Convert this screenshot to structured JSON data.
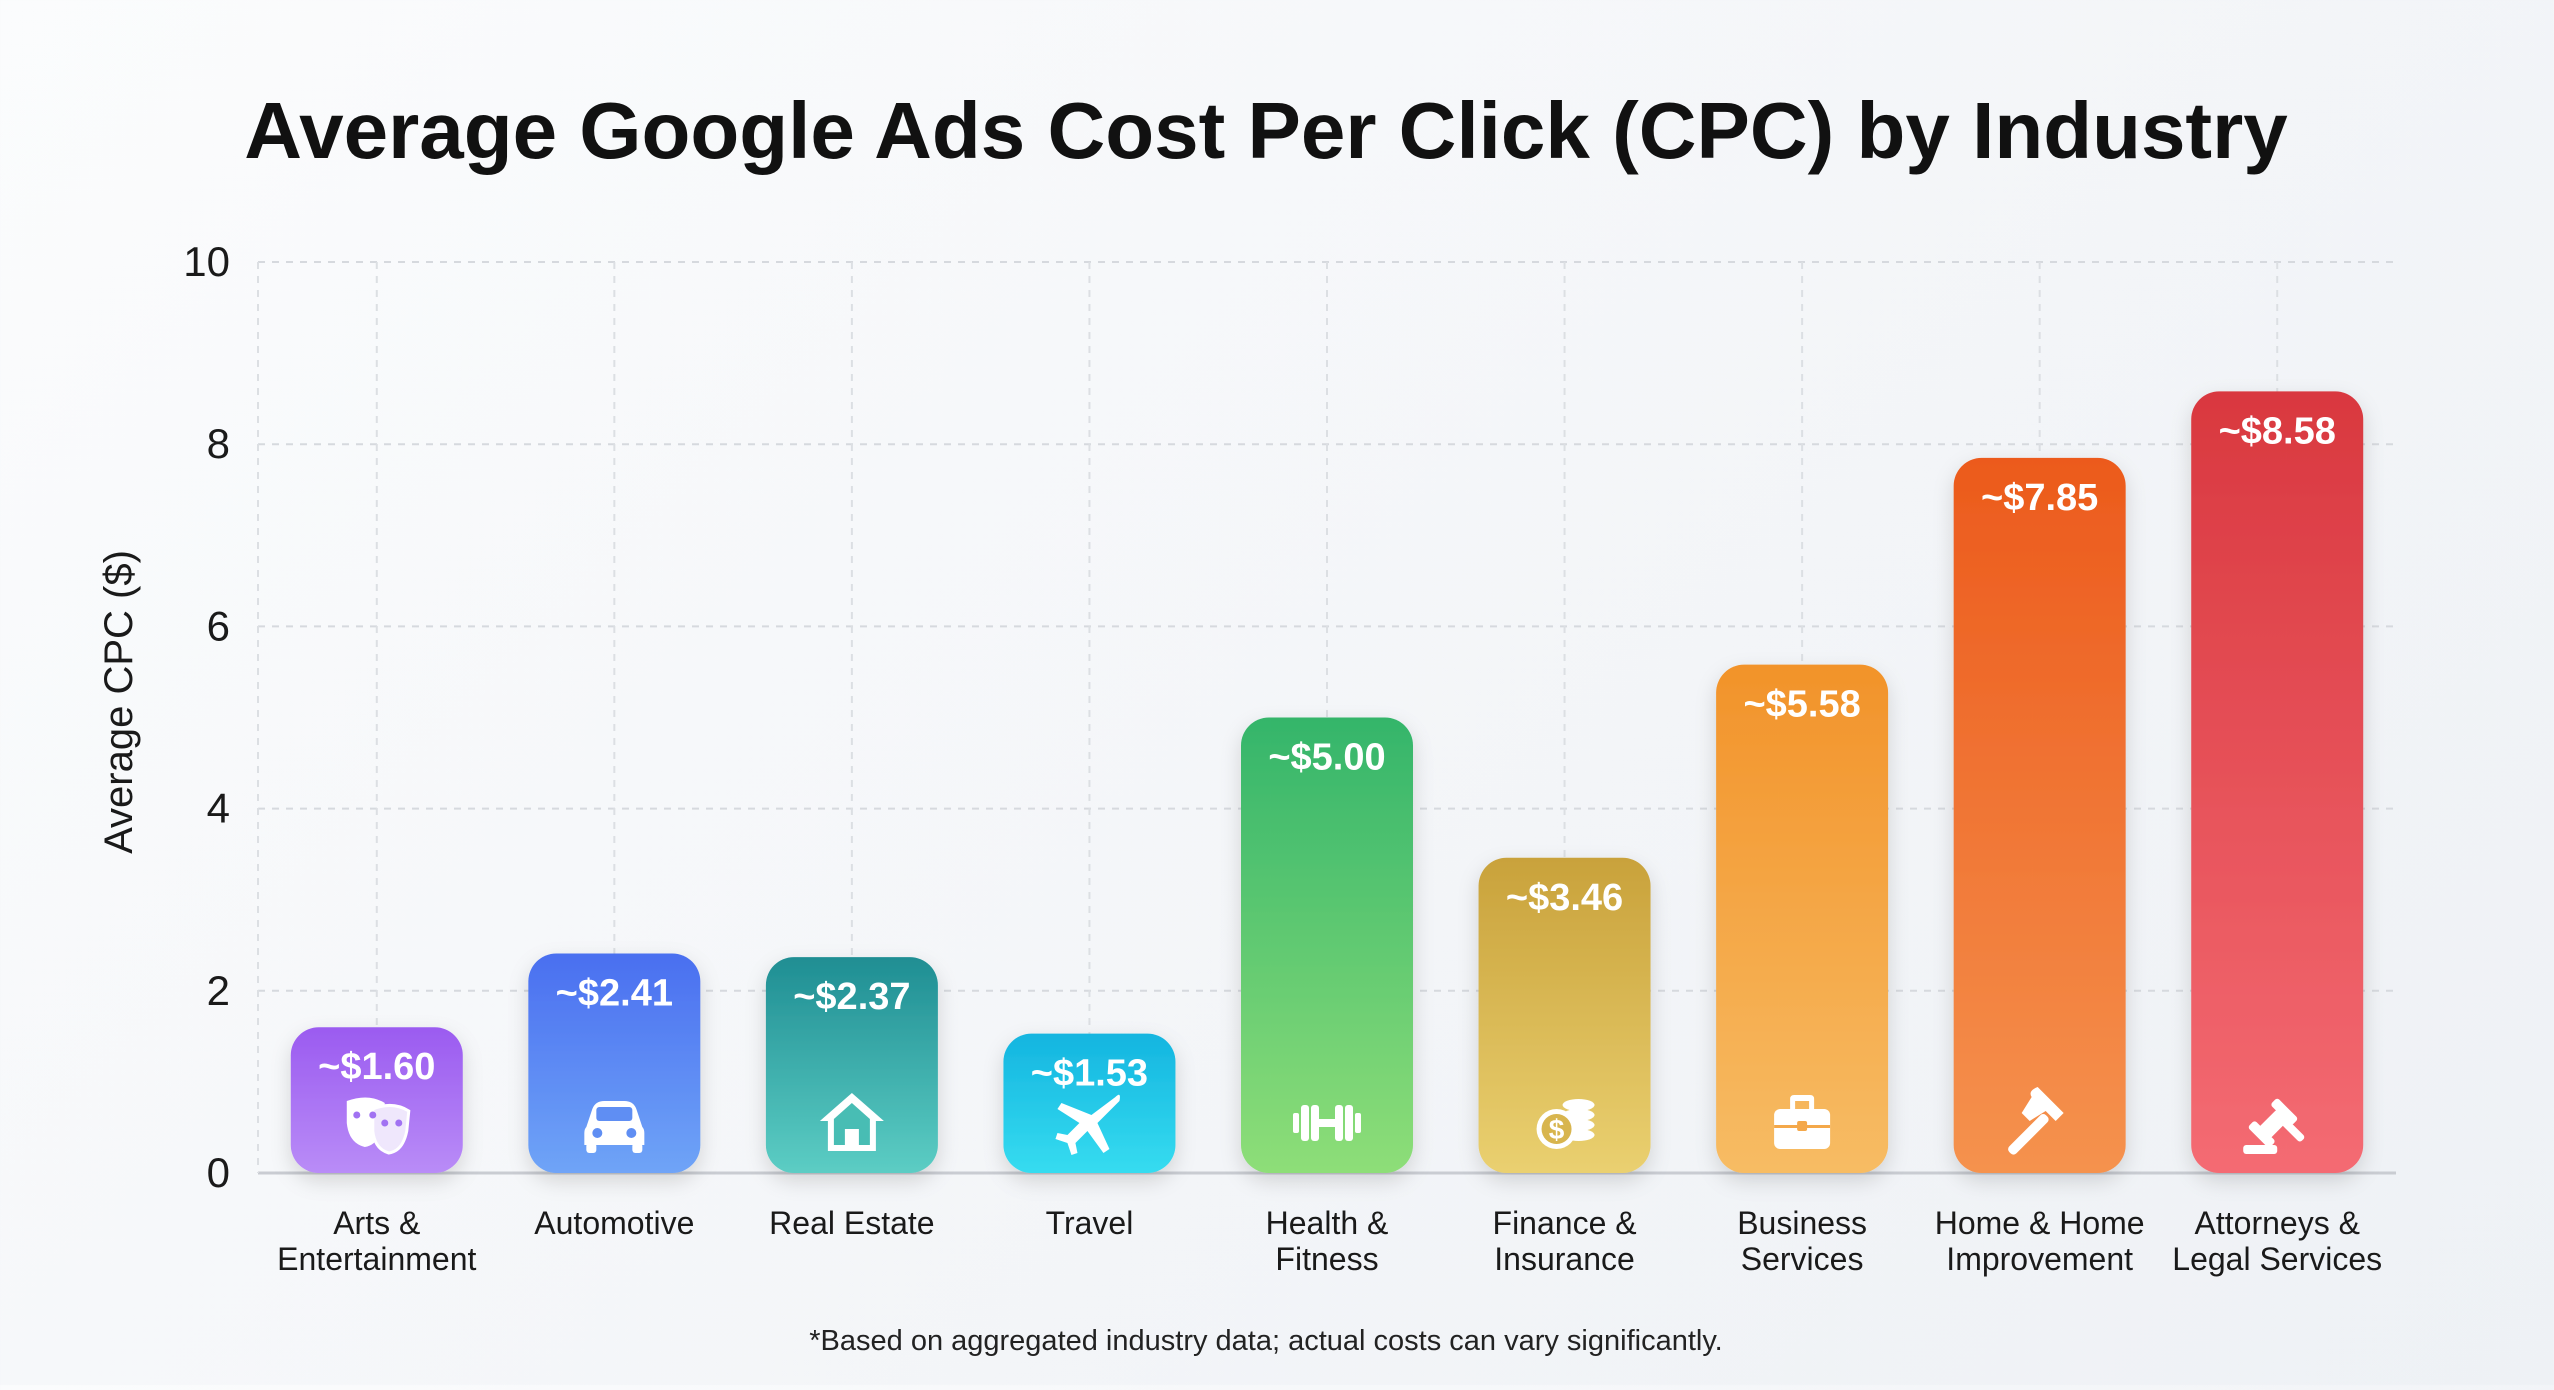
{
  "chart_data": {
    "type": "bar",
    "title": "Average Google Ads Cost Per Click (CPC) by Industry",
    "ylabel": "Average CPC ($)",
    "xlabel": "",
    "ylim": [
      0,
      10
    ],
    "yticks": [
      "0",
      "2",
      "4",
      "6",
      "8",
      "10"
    ],
    "grid": true,
    "categories": [
      [
        "Arts &",
        "Entertainment"
      ],
      [
        "Automotive"
      ],
      [
        "Real Estate"
      ],
      [
        "Travel"
      ],
      [
        "Health &",
        "Fitness"
      ],
      [
        "Finance &",
        "Insurance"
      ],
      [
        "Business",
        "Services"
      ],
      [
        "Home & Home",
        "Improvement"
      ],
      [
        "Attorneys &",
        "Legal Services"
      ]
    ],
    "values": [
      1.6,
      2.41,
      2.37,
      1.53,
      5.0,
      3.46,
      5.58,
      7.85,
      8.58
    ],
    "data_labels": [
      "~$1.60",
      "~$2.41",
      "~$2.37",
      "~$1.53",
      "~$5.00",
      "~$3.46",
      "~$5.58",
      "~$7.85",
      "~$8.58"
    ],
    "icons": [
      "theater-masks-icon",
      "car-icon",
      "house-icon",
      "airplane-icon",
      "dumbbell-icon",
      "coins-icon",
      "briefcase-icon",
      "hammer-icon",
      "gavel-icon"
    ],
    "colors": [
      [
        "#9b5bf0",
        "#b98cf7"
      ],
      [
        "#4a6ff0",
        "#6fa4f7"
      ],
      [
        "#1f8e93",
        "#5ccdc4"
      ],
      [
        "#14b5e0",
        "#36dcf0"
      ],
      [
        "#34b56b",
        "#8ede78"
      ],
      [
        "#c9a23b",
        "#ead070"
      ],
      [
        "#f2932a",
        "#f7bc64"
      ],
      [
        "#ec5a1c",
        "#f5924e"
      ],
      [
        "#d9383f",
        "#f46b73"
      ]
    ],
    "footnote": "*Based on aggregated industry data; actual costs can vary significantly."
  }
}
